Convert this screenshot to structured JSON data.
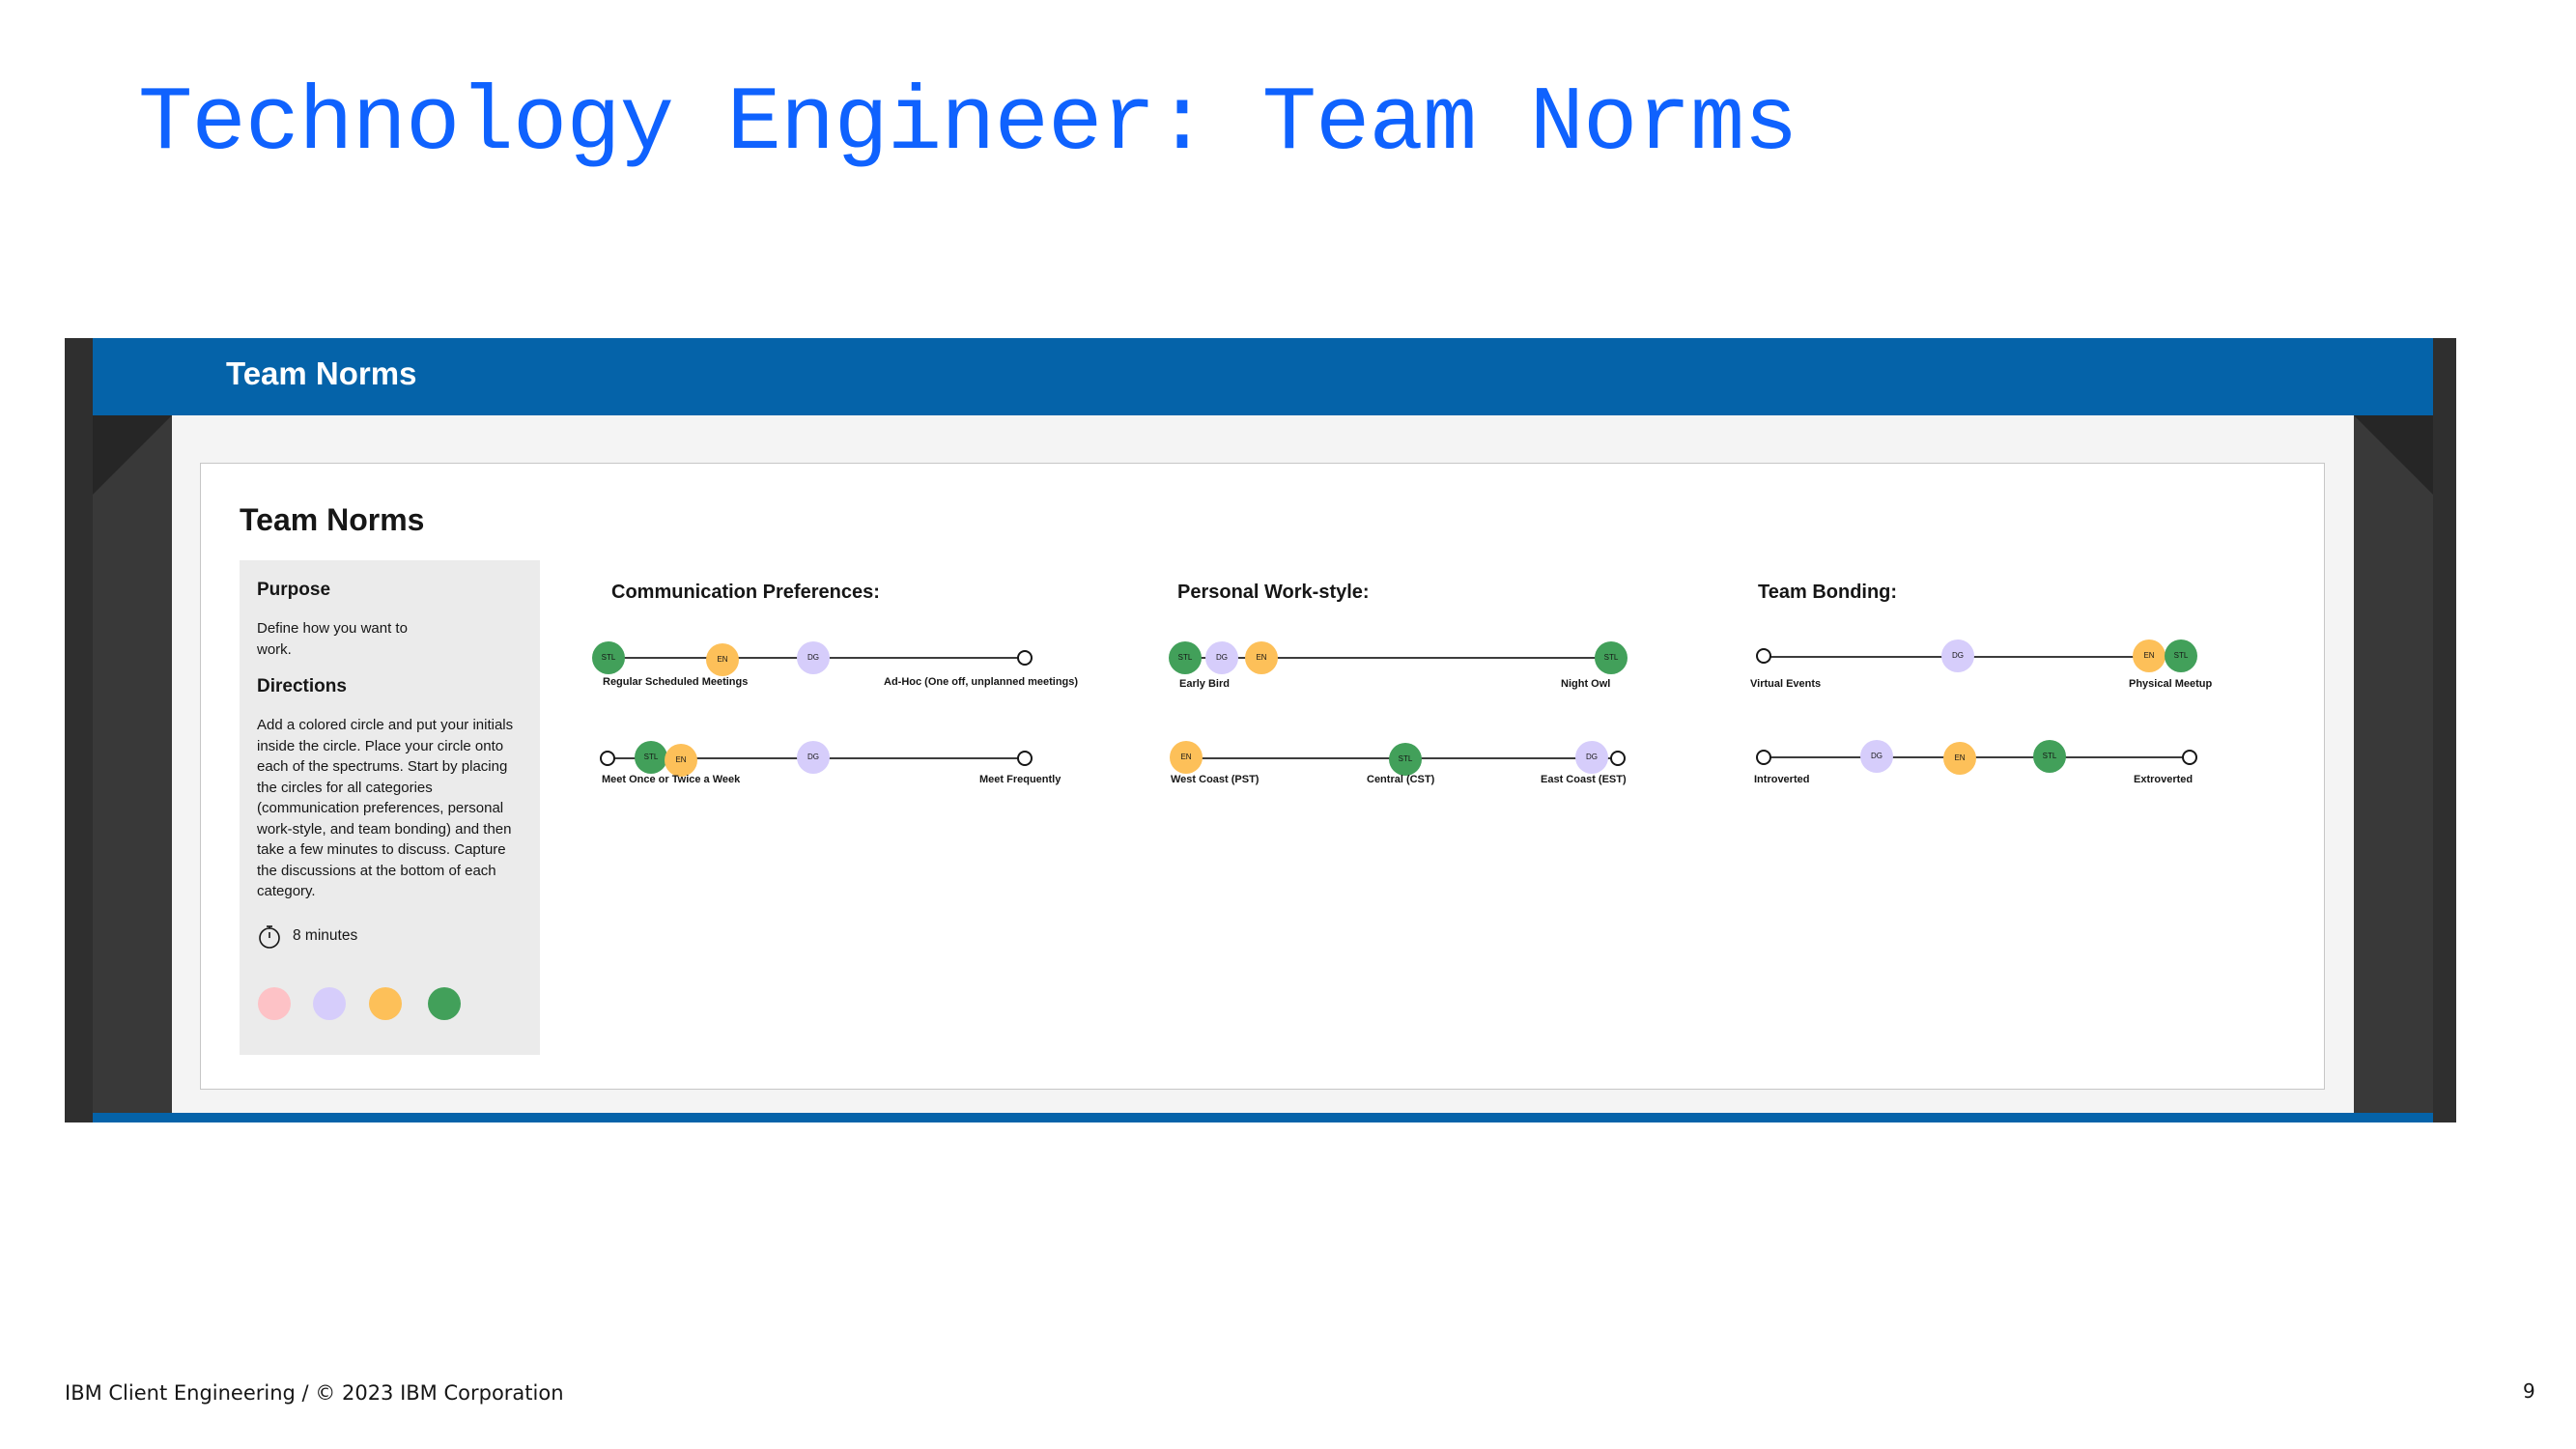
{
  "slide": {
    "title": "Technology Engineer: Team Norms",
    "footer": "IBM Client Engineering / © 2023 IBM Corporation",
    "page_number": "9"
  },
  "frame": {
    "header_title": "Team Norms"
  },
  "board": {
    "title": "Team Norms",
    "purpose": {
      "heading": "Purpose",
      "text": "Define how you want to work.",
      "directions_heading": "Directions",
      "directions_text": "Add a colored circle and put your initials inside the circle. Place your circle onto each of the spectrums. Start by placing the circles for all categories (communication preferences, personal work-style, and team bonding) and then take a few minutes to discuss. Capture the discussions at the bottom of each category.",
      "timer_icon": "stopwatch-icon",
      "time": "8 minutes",
      "swatch_colors": [
        "#fdc2c6",
        "#d6cdfb",
        "#fdc059",
        "#42a05a"
      ]
    },
    "sections": [
      {
        "title": "Communication Preferences:",
        "spectrums": [
          {
            "left": "Regular Scheduled Meetings",
            "right": "Ad-Hoc (One off, unplanned meetings)",
            "markers": [
              "STL",
              "EN",
              "DG"
            ]
          },
          {
            "left": "Meet Once or Twice a Week",
            "right": "Meet Frequently",
            "markers": [
              "STL",
              "EN",
              "DG"
            ]
          }
        ]
      },
      {
        "title": "Personal Work-style:",
        "spectrums": [
          {
            "left": "Early Bird",
            "right": "Night Owl",
            "markers": [
              "STL",
              "DG",
              "EN",
              "STL"
            ]
          },
          {
            "left": "West Coast (PST)",
            "middle": "Central (CST)",
            "right": "East Coast (EST)",
            "markers": [
              "EN",
              "STL",
              "DG"
            ]
          }
        ]
      },
      {
        "title": "Team Bonding:",
        "spectrums": [
          {
            "left": "Virtual Events",
            "right": "Physical Meetup",
            "markers": [
              "DG",
              "EN",
              "STL"
            ]
          },
          {
            "left": "Introverted",
            "right": "Extroverted",
            "markers": [
              "DG",
              "EN",
              "STL"
            ]
          }
        ]
      }
    ]
  },
  "colors": {
    "title_blue": "#0f62fe",
    "header_blue": "#0563a9",
    "frame_gray": "#393939",
    "green": "#42a05a",
    "orange": "#fdc059",
    "purple": "#d6cdfb",
    "pink": "#fdc2c6"
  }
}
